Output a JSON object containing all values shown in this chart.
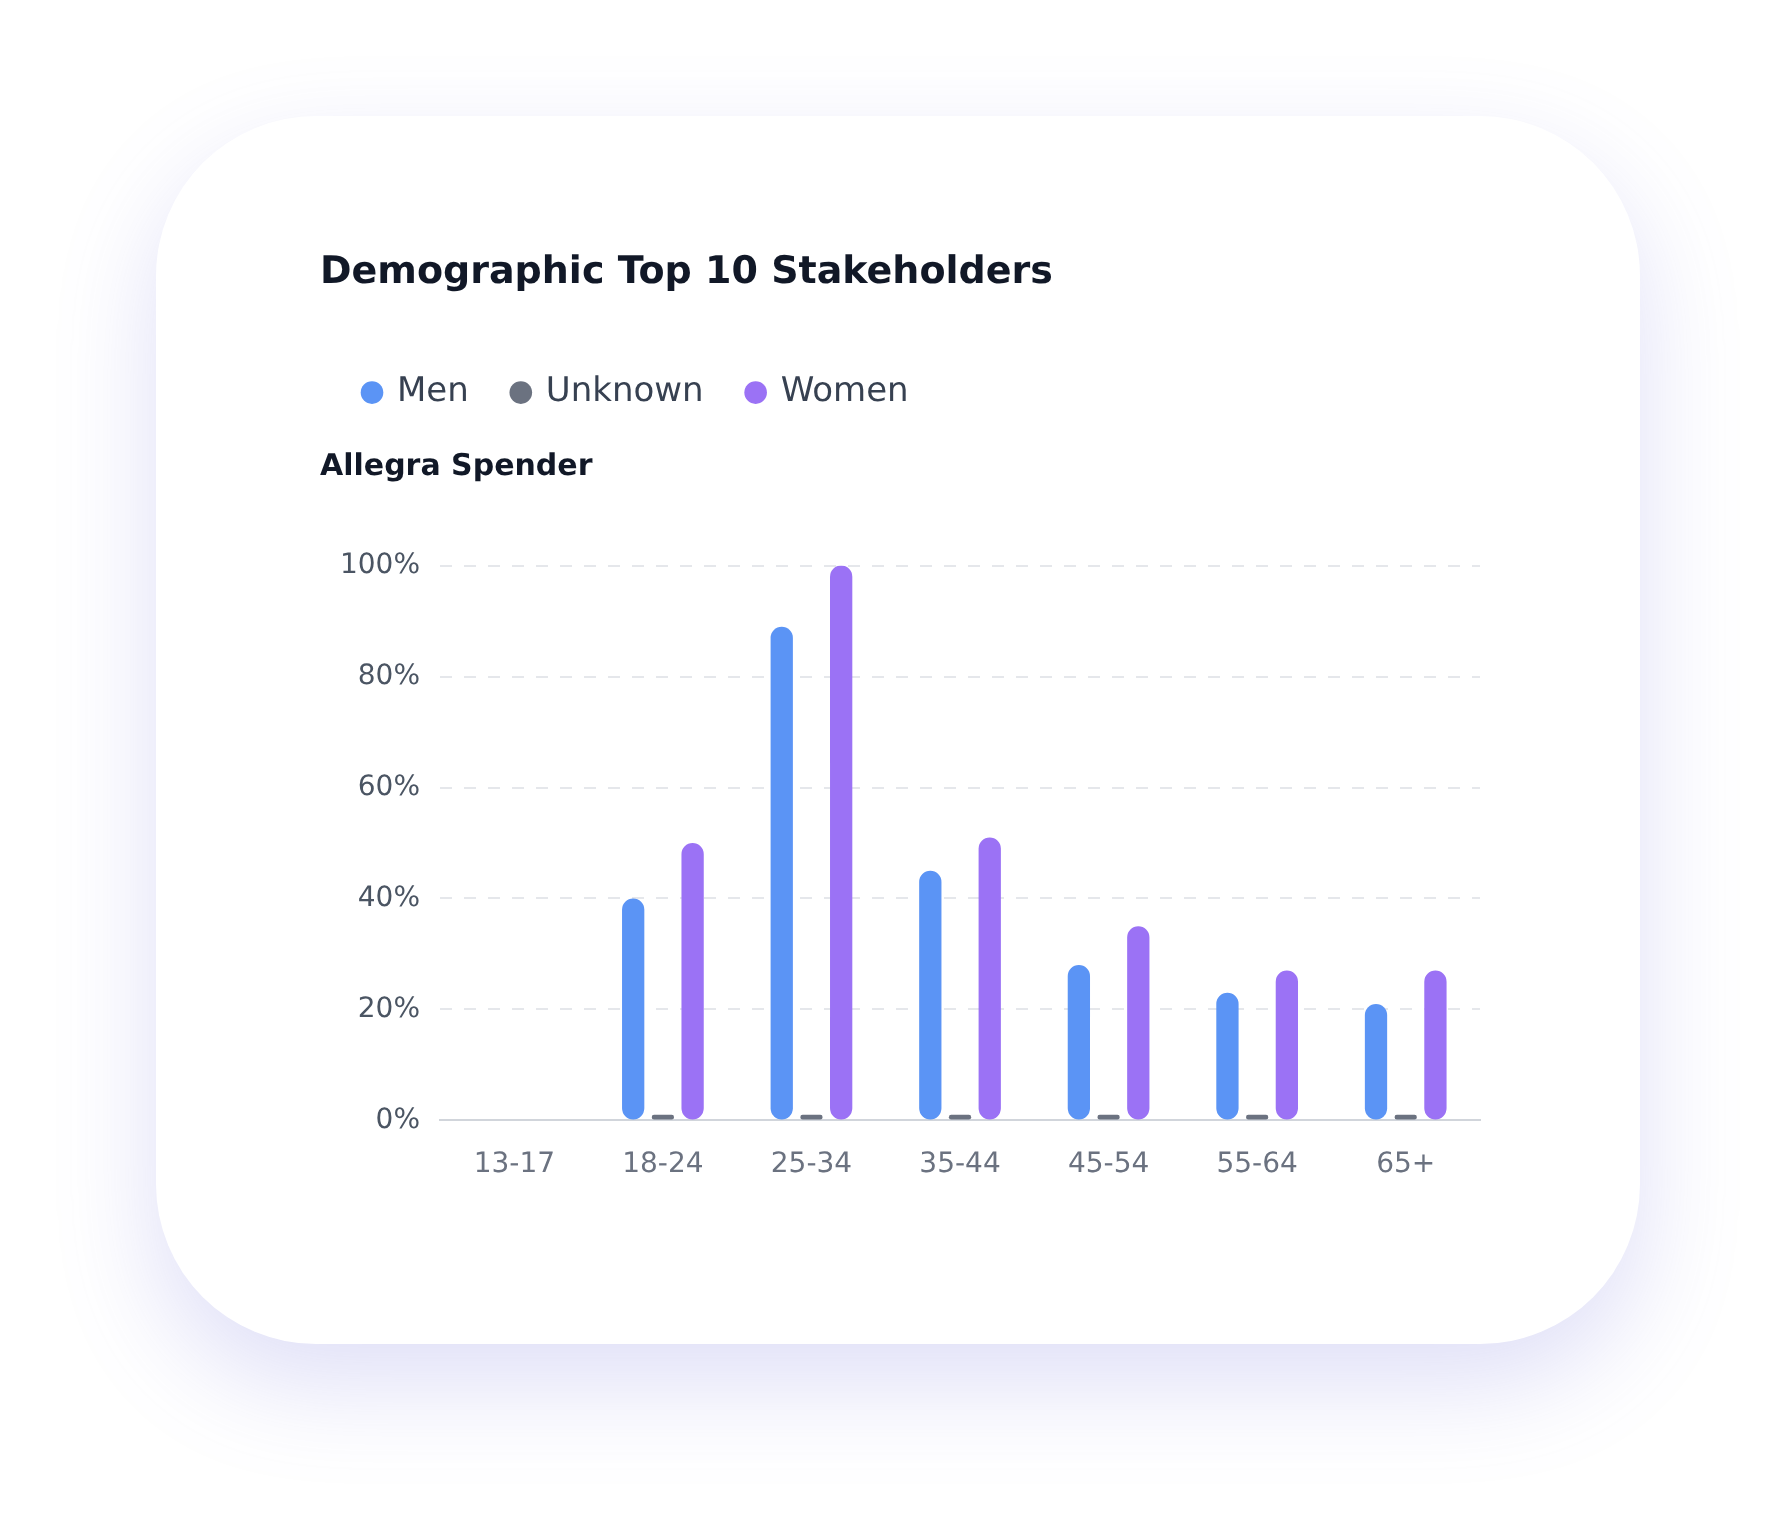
{
  "chart_data": {
    "type": "bar",
    "title": "Demographic Top 10 Stakeholders",
    "subtitle": "Allegra Spender",
    "categories": [
      "13-17",
      "18-24",
      "25-34",
      "35-44",
      "45-54",
      "55-64",
      "65+"
    ],
    "series": [
      {
        "name": "Men",
        "color": "#5b94f5",
        "values": [
          0,
          40,
          89,
          45,
          28,
          23,
          21
        ]
      },
      {
        "name": "Unknown",
        "color": "#6b7280",
        "values": [
          0,
          1,
          1,
          1,
          1,
          1,
          1
        ]
      },
      {
        "name": "Women",
        "color": "#9b72f5",
        "values": [
          0,
          50,
          100,
          51,
          35,
          27,
          27
        ]
      }
    ],
    "ylim": [
      0,
      100
    ],
    "yticks": [
      {
        "value": 0,
        "label": "0%"
      },
      {
        "value": 20,
        "label": "20%"
      },
      {
        "value": 40,
        "label": "40%"
      },
      {
        "value": 60,
        "label": "60%"
      },
      {
        "value": 80,
        "label": "80%"
      },
      {
        "value": 100,
        "label": "100%"
      }
    ],
    "grid": "y",
    "legend": "top left"
  }
}
